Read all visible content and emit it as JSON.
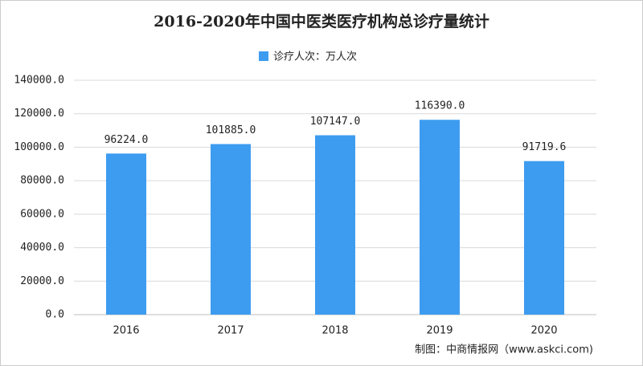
{
  "chart_data": {
    "type": "bar",
    "title": "2016-2020年中国中医类医疗机构总诊疗量统计",
    "categories": [
      "2016",
      "2017",
      "2018",
      "2019",
      "2020"
    ],
    "series": [
      {
        "name": "诊疗人次：万人次",
        "color": "#3d9cf0",
        "values": [
          96224.0,
          101885.0,
          107147.0,
          116390.0,
          91719.6
        ],
        "value_labels": [
          "96224.0",
          "101885.0",
          "107147.0",
          "116390.0",
          "91719.6"
        ]
      }
    ],
    "ylim": [
      0,
      140000
    ],
    "yticks": [
      {
        "value": 0,
        "label": "0.0"
      },
      {
        "value": 20000,
        "label": "20000.0"
      },
      {
        "value": 40000,
        "label": "40000.0"
      },
      {
        "value": 60000,
        "label": "60000.0"
      },
      {
        "value": 80000,
        "label": "80000.0"
      },
      {
        "value": 100000,
        "label": "100000.0"
      },
      {
        "value": 120000,
        "label": "120000.0"
      },
      {
        "value": 140000,
        "label": "140000.0"
      }
    ],
    "grid": true,
    "legend": "top",
    "source": "制图：中商情报网（www.askci.com)"
  }
}
